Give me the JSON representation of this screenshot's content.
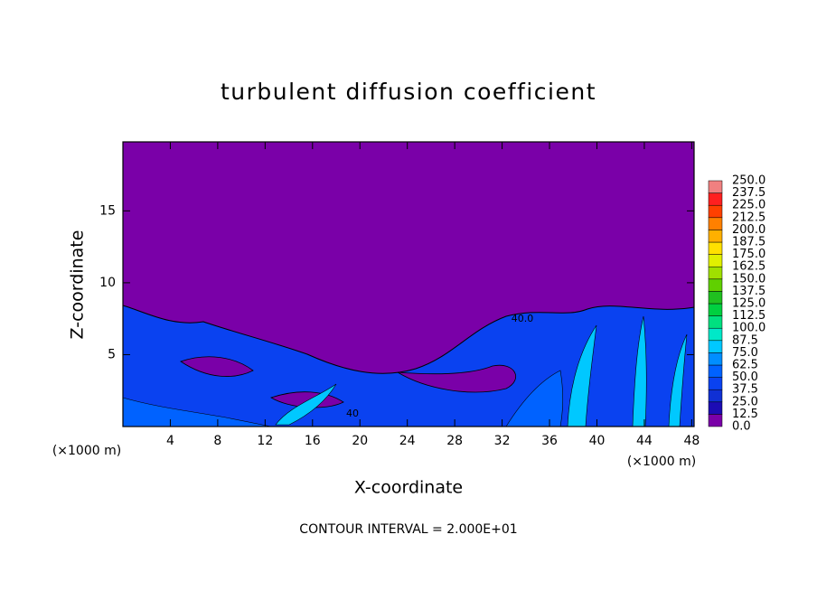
{
  "chart_data": {
    "type": "contour",
    "title": "turbulent diffusion coefficient",
    "x_label": "X-coordinate",
    "y_label": "Z-coordinate",
    "x_unit_left": "(×1000 m)",
    "x_unit_right": "(×1000 m)",
    "footer": "CONTOUR INTERVAL = 2.000E+01",
    "contour_labels": [
      "40.0",
      "40"
    ],
    "xlim": [
      0,
      48.2
    ],
    "ylim": [
      0,
      19.8
    ],
    "xticks": [
      4,
      8,
      12,
      16,
      20,
      24,
      28,
      32,
      36,
      40,
      44,
      48
    ],
    "yticks": [
      5,
      10,
      15
    ],
    "colorbar": {
      "levels": [
        {
          "value": 0,
          "label": "0.0"
        },
        {
          "value": 12.5,
          "label": "12.5"
        },
        {
          "value": 25,
          "label": "25.0"
        },
        {
          "value": 37.5,
          "label": "37.5"
        },
        {
          "value": 50,
          "label": "50.0"
        },
        {
          "value": 62.5,
          "label": "62.5"
        },
        {
          "value": 75,
          "label": "75.0"
        },
        {
          "value": 87.5,
          "label": "87.5"
        },
        {
          "value": 100,
          "label": "100.0"
        },
        {
          "value": 112.5,
          "label": "112.5"
        },
        {
          "value": 125,
          "label": "125.0"
        },
        {
          "value": 137.5,
          "label": "137.5"
        },
        {
          "value": 150,
          "label": "150.0"
        },
        {
          "value": 162.5,
          "label": "162.5"
        },
        {
          "value": 175,
          "label": "175.0"
        },
        {
          "value": 187.5,
          "label": "187.5"
        },
        {
          "value": 200,
          "label": "200.0"
        },
        {
          "value": 212.5,
          "label": "212.5"
        },
        {
          "value": 225,
          "label": "225.0"
        },
        {
          "value": 237.5,
          "label": "237.5"
        },
        {
          "value": 250,
          "label": "250.0"
        }
      ],
      "colors": [
        "#7a00a8",
        "#1c0cb4",
        "#1030d4",
        "#0a42f0",
        "#0062ff",
        "#008eff",
        "#00c8ff",
        "#00e8c8",
        "#00e080",
        "#00d040",
        "#20c020",
        "#60d000",
        "#a0e000",
        "#e0f000",
        "#ffe000",
        "#ffb000",
        "#ff8000",
        "#ff4000",
        "#ff2020",
        "#f08080"
      ]
    }
  }
}
